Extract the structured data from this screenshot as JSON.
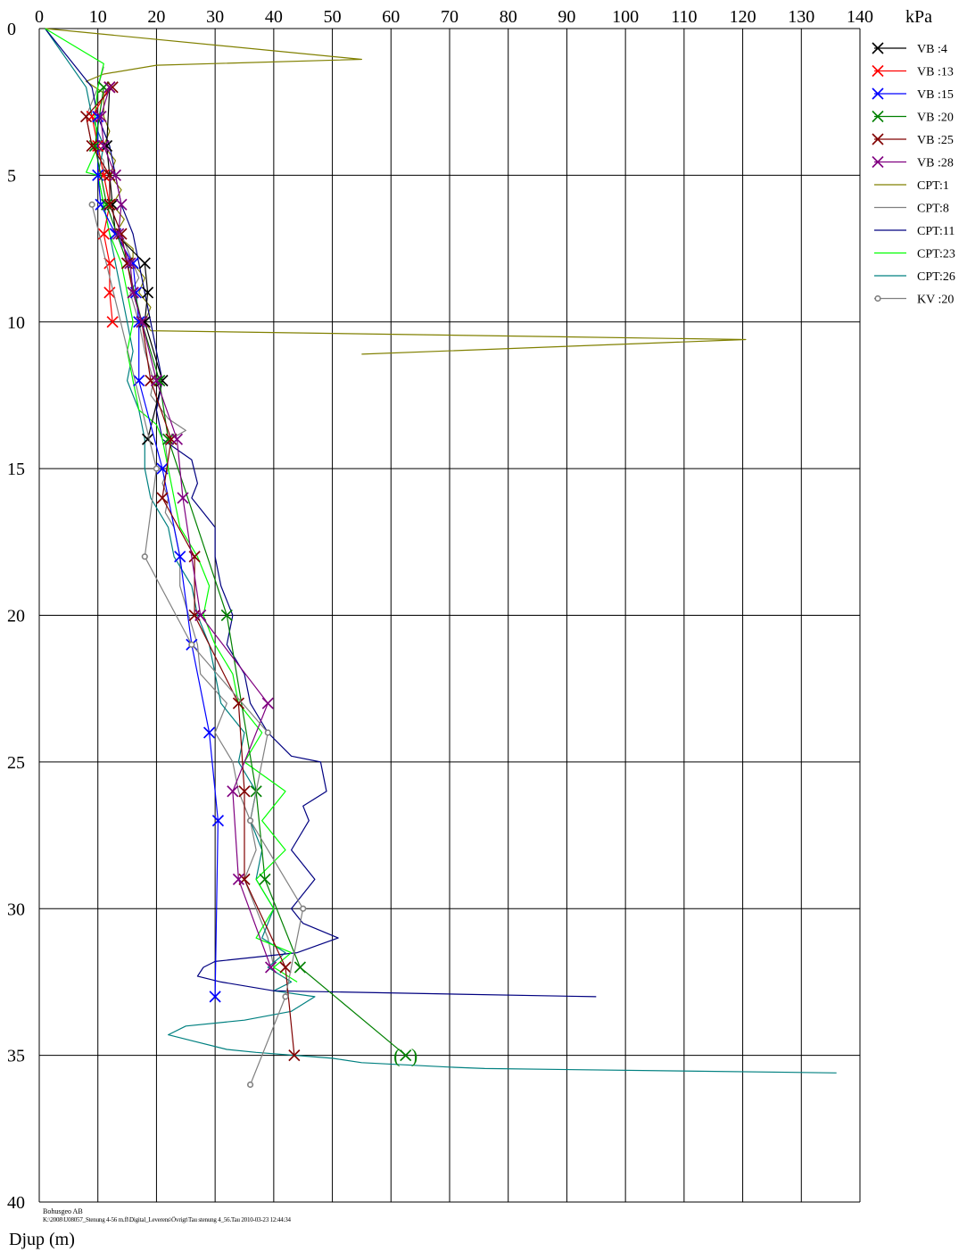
{
  "footer": {
    "company": "Bohusgeo AB",
    "path": "K:\\2008\\U08057_Stenung 4-56 m.fl\\Digital_Leverens\\Övrigt\\Tau stenung 4_56.Tau  2010-03-23 12:44:34"
  },
  "chart_data": {
    "type": "line",
    "x_unit": "kPa",
    "ylabel": "Djup (m)",
    "xlim": [
      0,
      140
    ],
    "ylim": [
      0,
      40
    ],
    "y_inverted": true,
    "x_axis_position": "top",
    "x_ticks": [
      0,
      10,
      20,
      30,
      40,
      50,
      60,
      70,
      80,
      90,
      100,
      110,
      120,
      130,
      140
    ],
    "y_ticks": [
      0,
      5,
      10,
      15,
      20,
      25,
      30,
      35,
      40
    ],
    "grid": true,
    "legend_position": "right",
    "series": [
      {
        "name": "VB :4",
        "color": "#000000",
        "marker": "x",
        "points": [
          [
            12,
            2
          ],
          [
            11.5,
            4
          ],
          [
            12,
            5
          ],
          [
            12.5,
            6
          ],
          [
            13,
            7
          ],
          [
            18,
            8
          ],
          [
            18.5,
            9
          ],
          [
            18,
            10
          ],
          [
            21,
            12
          ],
          [
            18.5,
            14
          ]
        ]
      },
      {
        "name": "VB :13",
        "color": "#ff0000",
        "marker": "x",
        "points": [
          [
            12,
            2
          ],
          [
            9,
            3
          ],
          [
            10,
            4
          ],
          [
            11,
            5
          ],
          [
            12,
            6
          ],
          [
            11,
            7
          ],
          [
            12,
            8
          ],
          [
            12,
            9
          ],
          [
            12.5,
            10
          ]
        ]
      },
      {
        "name": "VB :15",
        "color": "#0000ff",
        "marker": "x",
        "points": [
          [
            10,
            3
          ],
          [
            10,
            5
          ],
          [
            10.5,
            6
          ],
          [
            13,
            7
          ],
          [
            16,
            8
          ],
          [
            16.5,
            9
          ],
          [
            17,
            10
          ],
          [
            17,
            12
          ],
          [
            21,
            15
          ],
          [
            24,
            18
          ],
          [
            26,
            21
          ],
          [
            29,
            24
          ],
          [
            30.5,
            27
          ],
          [
            30,
            33
          ]
        ]
      },
      {
        "name": "VB :20",
        "color": "#008000",
        "marker": "x",
        "points": [
          [
            11,
            2
          ],
          [
            9.5,
            4
          ],
          [
            11.5,
            6
          ],
          [
            15,
            8
          ],
          [
            17.5,
            10
          ],
          [
            20.5,
            12
          ],
          [
            22,
            14
          ],
          [
            32,
            20
          ],
          [
            37,
            26
          ],
          [
            38.5,
            29
          ],
          [
            44.5,
            32
          ],
          [
            62.5,
            35
          ]
        ]
      },
      {
        "name": "VB :25",
        "color": "#800000",
        "marker": "x",
        "points": [
          [
            12.5,
            2
          ],
          [
            8,
            3
          ],
          [
            9,
            4
          ],
          [
            12,
            5
          ],
          [
            12,
            6
          ],
          [
            14,
            7
          ],
          [
            15,
            8
          ],
          [
            16,
            9
          ],
          [
            17.5,
            10
          ],
          [
            19,
            12
          ],
          [
            22.5,
            14
          ],
          [
            21,
            16
          ],
          [
            26.5,
            18
          ],
          [
            26.5,
            20
          ],
          [
            34,
            23
          ],
          [
            35,
            26
          ],
          [
            35,
            29
          ],
          [
            42,
            32
          ],
          [
            43.5,
            35
          ]
        ]
      },
      {
        "name": "VB :28",
        "color": "#800080",
        "marker": "x",
        "points": [
          [
            12,
            2
          ],
          [
            10.5,
            3
          ],
          [
            11,
            4
          ],
          [
            13,
            5
          ],
          [
            14,
            6
          ],
          [
            13.5,
            7
          ],
          [
            15.5,
            8
          ],
          [
            16,
            9
          ],
          [
            17.5,
            10
          ],
          [
            20,
            12
          ],
          [
            23.5,
            14
          ],
          [
            24.5,
            16
          ],
          [
            27.5,
            20
          ],
          [
            39,
            23
          ],
          [
            33,
            26
          ],
          [
            34,
            29
          ],
          [
            39.5,
            32
          ]
        ]
      },
      {
        "name": "CPT:1",
        "color": "#808000",
        "marker": "none",
        "points": [
          [
            1,
            0
          ],
          [
            55,
            1.05
          ],
          [
            20,
            1.25
          ],
          [
            11,
            1.55
          ],
          [
            8,
            1.8
          ],
          [
            11,
            2.2
          ],
          [
            11,
            3
          ],
          [
            12,
            3.5
          ],
          [
            11,
            4
          ],
          [
            13,
            4.5
          ],
          [
            12,
            5
          ],
          [
            14,
            5.5
          ],
          [
            12.5,
            6
          ],
          [
            14.5,
            6.5
          ],
          [
            13,
            7
          ],
          [
            16,
            7.5
          ],
          [
            16,
            8
          ],
          [
            18,
            8.5
          ],
          [
            17,
            9
          ],
          [
            19,
            9.5
          ],
          [
            18,
            10
          ],
          [
            19,
            10.3
          ],
          [
            120.5,
            10.6
          ],
          [
            55,
            11.1
          ]
        ]
      },
      {
        "name": "CPT:8",
        "color": "#808080",
        "marker": "none",
        "points": [
          [
            11,
            1.3
          ],
          [
            10,
            2
          ],
          [
            8,
            3
          ],
          [
            9,
            4
          ],
          [
            11,
            4.5
          ],
          [
            11,
            5
          ],
          [
            12,
            6
          ],
          [
            14,
            7
          ],
          [
            16,
            8
          ],
          [
            17,
            8.5
          ],
          [
            15.5,
            9
          ],
          [
            17,
            10
          ],
          [
            18,
            11
          ],
          [
            19.5,
            12
          ],
          [
            19,
            12.5
          ],
          [
            22,
            13.3
          ],
          [
            25,
            13.7
          ],
          [
            21.5,
            14.1
          ],
          [
            22,
            15
          ],
          [
            21,
            15.5
          ],
          [
            22,
            16
          ],
          [
            21.5,
            16.5
          ],
          [
            23,
            17
          ],
          [
            24,
            18
          ],
          [
            24,
            19
          ],
          [
            27,
            21
          ],
          [
            27.5,
            22
          ],
          [
            32,
            23
          ],
          [
            30,
            24
          ],
          [
            33,
            25
          ],
          [
            34,
            26
          ],
          [
            36,
            27
          ],
          [
            37,
            28
          ],
          [
            35,
            29
          ],
          [
            37,
            30
          ],
          [
            39,
            31
          ],
          [
            40,
            32
          ]
        ]
      },
      {
        "name": "CPT:11",
        "color": "#000080",
        "marker": "none",
        "points": [
          [
            1,
            0
          ],
          [
            9,
            2
          ],
          [
            10,
            3
          ],
          [
            12,
            4
          ],
          [
            13,
            5
          ],
          [
            14,
            6
          ],
          [
            16,
            7
          ],
          [
            17,
            8
          ],
          [
            18,
            9
          ],
          [
            19,
            10
          ],
          [
            20,
            11
          ],
          [
            21,
            12
          ],
          [
            20,
            13
          ],
          [
            21,
            14
          ],
          [
            26,
            14.7
          ],
          [
            27,
            15.5
          ],
          [
            26,
            16
          ],
          [
            28,
            16.5
          ],
          [
            30,
            17
          ],
          [
            30,
            18
          ],
          [
            31,
            19
          ],
          [
            33,
            20
          ],
          [
            32,
            21
          ],
          [
            35,
            22
          ],
          [
            36,
            23
          ],
          [
            39,
            24
          ],
          [
            43,
            24.8
          ],
          [
            48,
            25
          ],
          [
            49,
            26
          ],
          [
            45,
            26.5
          ],
          [
            46,
            27
          ],
          [
            43,
            28
          ],
          [
            47,
            29
          ],
          [
            43,
            30
          ],
          [
            45,
            30.5
          ],
          [
            51,
            31
          ],
          [
            44,
            31.5
          ],
          [
            30,
            31.8
          ],
          [
            28,
            32
          ],
          [
            27,
            32.3
          ],
          [
            31,
            32.5
          ],
          [
            40,
            32.8
          ],
          [
            95,
            33
          ]
        ]
      },
      {
        "name": "CPT:23",
        "color": "#00ff00",
        "marker": "none",
        "points": [
          [
            1,
            0
          ],
          [
            11,
            1.2
          ],
          [
            10,
            2
          ],
          [
            9.5,
            3
          ],
          [
            10,
            4
          ],
          [
            8,
            4.9
          ],
          [
            10,
            5
          ],
          [
            11,
            6
          ],
          [
            12,
            7
          ],
          [
            14,
            8
          ],
          [
            15,
            9
          ],
          [
            16,
            10
          ],
          [
            15,
            11
          ],
          [
            16,
            12
          ],
          [
            17,
            13
          ],
          [
            20,
            13.5
          ],
          [
            21,
            14
          ],
          [
            22,
            15
          ],
          [
            23,
            16
          ],
          [
            24,
            17
          ],
          [
            27,
            18
          ],
          [
            29,
            19
          ],
          [
            28,
            20
          ],
          [
            30,
            21
          ],
          [
            33,
            22
          ],
          [
            34,
            23
          ],
          [
            38,
            24
          ],
          [
            35,
            25
          ],
          [
            42,
            26
          ],
          [
            38,
            27
          ],
          [
            42,
            28
          ],
          [
            37,
            29
          ],
          [
            40,
            30
          ],
          [
            37,
            31
          ],
          [
            43,
            31.5
          ],
          [
            40,
            32
          ],
          [
            44,
            32.5
          ]
        ]
      },
      {
        "name": "CPT:26",
        "color": "#008080",
        "marker": "none",
        "points": [
          [
            1,
            0
          ],
          [
            8,
            2
          ],
          [
            9,
            3
          ],
          [
            11,
            4
          ],
          [
            10,
            5
          ],
          [
            11,
            6
          ],
          [
            12,
            7
          ],
          [
            13,
            8
          ],
          [
            14,
            9
          ],
          [
            15,
            10
          ],
          [
            16,
            11
          ],
          [
            15,
            12
          ],
          [
            17,
            13
          ],
          [
            18,
            14
          ],
          [
            18,
            15
          ],
          [
            19,
            16
          ],
          [
            22,
            17
          ],
          [
            23,
            18
          ],
          [
            26,
            19
          ],
          [
            27,
            20
          ],
          [
            29,
            21
          ],
          [
            30,
            22
          ],
          [
            31,
            23
          ],
          [
            35,
            24
          ],
          [
            34,
            25
          ],
          [
            37,
            26
          ],
          [
            36,
            27
          ],
          [
            38,
            28
          ],
          [
            37,
            29
          ],
          [
            40,
            30
          ],
          [
            38,
            31
          ],
          [
            42,
            31.5
          ],
          [
            39,
            32
          ],
          [
            43,
            32.5
          ],
          [
            40,
            32.8
          ],
          [
            47,
            33
          ],
          [
            43,
            33.5
          ],
          [
            35,
            33.8
          ],
          [
            25,
            34
          ],
          [
            22,
            34.3
          ],
          [
            26,
            34.5
          ],
          [
            32,
            34.8
          ],
          [
            37,
            34.9
          ],
          [
            50,
            35.1
          ],
          [
            55,
            35.25
          ],
          [
            70,
            35.4
          ],
          [
            76,
            35.45
          ],
          [
            136,
            35.6
          ]
        ]
      },
      {
        "name": "KV :20",
        "color": "#808080",
        "marker": "circle",
        "points": [
          [
            9,
            6
          ],
          [
            20,
            15
          ],
          [
            18,
            18
          ],
          [
            26,
            21
          ],
          [
            39,
            24
          ],
          [
            36,
            27
          ],
          [
            45,
            30
          ],
          [
            42,
            33
          ],
          [
            36,
            36
          ]
        ]
      }
    ],
    "annotation": {
      "text": "(×)",
      "x": 62.5,
      "y": 35
    }
  }
}
